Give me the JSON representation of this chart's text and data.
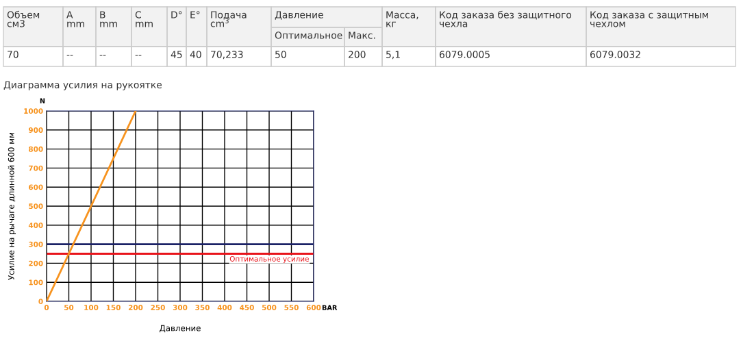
{
  "chart_data": [
    {
      "type": "other",
      "annotations": [
        "Объем\nсм3",
        "A\nmm",
        "B\nmm",
        "C\nmm",
        "D°",
        "E°",
        "Подача\ncm$^{3}$",
        "Давление",
        "Масса,\nкг",
        "Код заказа без защитного\nчехла",
        "Код заказа с защитным\nчехлом",
        "Оптимальное",
        "Макс.",
        "70",
        "--",
        "--",
        "--",
        "45",
        "40",
        "70,233",
        "50",
        "200",
        "5,1",
        "6079.0005",
        "6079.0032"
      ]
    },
    {
      "type": "line",
      "title": "Диаграмма усилия на рукоятке",
      "xlabel": "Давление",
      "ylabel": "Усилие на рычаге длинной 600 мм",
      "series": [
        {
          "color": "#f7931e",
          "x": [
            0,
            200
          ],
          "values": [
            0,
            1000
          ]
        }
      ],
      "xlim": [
        0,
        600
      ],
      "xticks": [
        0,
        50,
        100,
        150,
        200,
        250,
        300,
        350,
        400,
        450,
        500,
        550,
        600
      ],
      "ylim": [
        0,
        1000
      ],
      "yticks": [
        0,
        100,
        200,
        300,
        400,
        500,
        600,
        700,
        800,
        900,
        1000
      ],
      "grid": true,
      "marker": "none",
      "line_style": "solid",
      "ref_lines": [
        {
          "axis": "y",
          "value": 300,
          "color": "#1b2266"
        },
        {
          "axis": "y",
          "value": 250,
          "color": "#e8141b",
          "label": "Оптимальное усилие"
        }
      ],
      "annotations": [
        "N",
        "BAR"
      ]
    }
  ]
}
